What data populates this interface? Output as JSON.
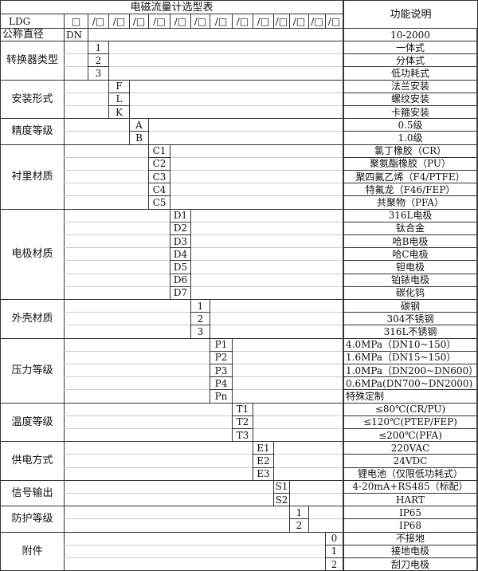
{
  "title": "电磁流量计选型表",
  "function_header": "功能说明",
  "model_row": {
    "prefix": "LDG",
    "first_slot": "□",
    "slots": [
      "/□",
      "/□",
      "/□",
      "/□",
      "/□",
      "/□",
      "/□",
      "/□",
      "/□",
      "/□",
      "/□",
      "/□",
      "/□"
    ]
  },
  "nominal_diameter": {
    "label": "公称直径",
    "code": "DN",
    "description": "10-2000"
  },
  "groups": [
    {
      "label": "转换器类型",
      "codes": [
        "1",
        "2",
        "3"
      ],
      "descriptions": [
        "一体式",
        "分体式",
        "低功耗式"
      ]
    },
    {
      "label": "安装形式",
      "codes": [
        "F",
        "L",
        "K"
      ],
      "descriptions": [
        "法兰安装",
        "螺纹安装",
        "卡箍安装"
      ]
    },
    {
      "label": "精度等级",
      "codes": [
        "A",
        "B"
      ],
      "descriptions": [
        "0.5级",
        "1.0级"
      ]
    },
    {
      "label": "衬里材质",
      "codes": [
        "C1",
        "C2",
        "C3",
        "C4",
        "C5"
      ],
      "descriptions": [
        "氯丁橡胶（CR）",
        "聚氨酯橡胶（PU）",
        "聚四氟乙烯（F4/PTFE）",
        "特氟龙（F46/FEP）",
        "共聚物（PFA）"
      ]
    },
    {
      "label": "电极材质",
      "codes": [
        "D1",
        "D2",
        "D3",
        "D4",
        "D5",
        "D6",
        "D7"
      ],
      "descriptions": [
        "316L电极",
        "钛合金",
        "哈B电极",
        "哈C电极",
        "钽电极",
        "铂铱电极",
        "碳化钨"
      ]
    },
    {
      "label": "外壳材质",
      "codes": [
        "1",
        "2",
        "3"
      ],
      "descriptions": [
        "碳钢",
        "304不锈钢",
        "316L不锈钢"
      ]
    },
    {
      "label": "压力等级",
      "codes": [
        "P1",
        "P2",
        "P3",
        "P4",
        "Pn"
      ],
      "descriptions": [
        "4.0MPa（DN10~150）",
        "1.6MPa（DN15~150）",
        "1.0MPa（DN200~DN600）",
        "0.6MPa(DN700~DN2000)",
        "特殊定制"
      ]
    },
    {
      "label": "温度等级",
      "codes": [
        "T1",
        "T2",
        "T3"
      ],
      "descriptions": [
        "≤80℃(CR/PU)",
        "≤120℃(PTEP/FEP)",
        "≤200℃(PFA)"
      ]
    },
    {
      "label": "供电方式",
      "codes": [
        "E1",
        "E2",
        "E3"
      ],
      "descriptions": [
        "220VAC",
        "24VDC",
        "锂电池（仅限低功耗式）"
      ]
    },
    {
      "label": "信号输出",
      "codes": [
        "S1",
        "S2"
      ],
      "descriptions": [
        "4-20mA+RS485（标配）",
        "HART"
      ]
    },
    {
      "label": "防护等级",
      "codes": [
        "1",
        "2"
      ],
      "descriptions": [
        "IP65",
        "IP68"
      ]
    },
    {
      "label": "附件",
      "codes": [
        "0",
        "1",
        "2"
      ],
      "descriptions": [
        "不接地",
        "接地电极",
        "刮刀电极"
      ]
    }
  ]
}
